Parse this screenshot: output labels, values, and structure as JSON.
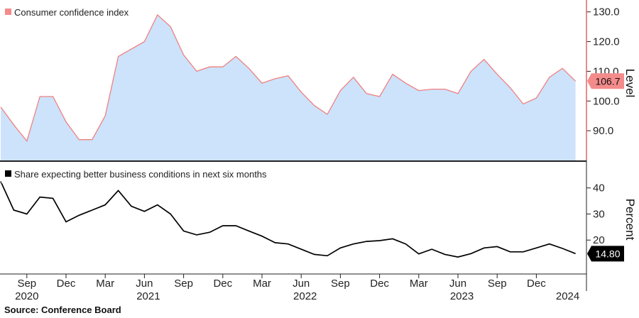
{
  "source": "Source: Conference Board",
  "chart_data": [
    {
      "type": "area",
      "title": "",
      "ylabel": "Level",
      "series": [
        {
          "name": "Consumer confidence index",
          "values": [
            98.0,
            92.0,
            86.5,
            101.5,
            101.5,
            93.0,
            87.0,
            87.0,
            95.0,
            115.0,
            117.5,
            120.0,
            129.0,
            125.0,
            115.5,
            110.0,
            111.5,
            111.5,
            115.0,
            111.0,
            106.0,
            107.5,
            108.5,
            103.0,
            98.5,
            95.5,
            103.5,
            108.0,
            102.5,
            101.5,
            109.0,
            106.0,
            103.5,
            104.0,
            104.0,
            102.5,
            110.0,
            114.0,
            109.0,
            104.5,
            99.0,
            101.0,
            108.0,
            111.0,
            106.7
          ]
        }
      ],
      "last_value_label": "106.7",
      "y_ticks": [
        "90.0",
        "100.0",
        "110.0",
        "120.0",
        "130.0"
      ],
      "ylim": [
        80,
        134
      ],
      "grid": false,
      "legend_position": "top-left",
      "colors": {
        "line": "#f08080",
        "fill": "#cce3fb",
        "tag": "#f48b8b"
      }
    },
    {
      "type": "line",
      "title": "",
      "ylabel": "Percent",
      "series": [
        {
          "name": "Share expecting better business conditions in next six months",
          "values": [
            42.5,
            31.5,
            30.0,
            36.5,
            36.0,
            27.0,
            29.5,
            31.5,
            33.5,
            39.0,
            33.0,
            31.0,
            33.5,
            30.0,
            23.5,
            22.0,
            23.0,
            25.5,
            25.5,
            23.5,
            21.5,
            19.0,
            18.5,
            16.5,
            14.5,
            14.0,
            17.0,
            18.5,
            19.5,
            19.8,
            20.5,
            18.5,
            14.7,
            16.5,
            14.5,
            13.5,
            14.8,
            17.0,
            17.5,
            15.5,
            15.5,
            17.0,
            18.5,
            16.8,
            14.8
          ]
        }
      ],
      "last_value_label": "14.80",
      "y_ticks": [
        "20",
        "30",
        "40"
      ],
      "ylim": [
        7,
        50
      ],
      "grid": false,
      "legend_position": "top-left",
      "colors": {
        "line": "#000000",
        "tag": "#000000"
      }
    }
  ],
  "x_axis": {
    "month_ticks": [
      "Sep",
      "Dec",
      "Mar",
      "Jun",
      "Sep",
      "Dec",
      "Mar",
      "Jun",
      "Sep",
      "Dec",
      "Mar",
      "Jun",
      "Sep",
      "Dec"
    ],
    "year_labels": [
      "2020",
      "2021",
      "2022",
      "2023",
      "2024"
    ]
  }
}
